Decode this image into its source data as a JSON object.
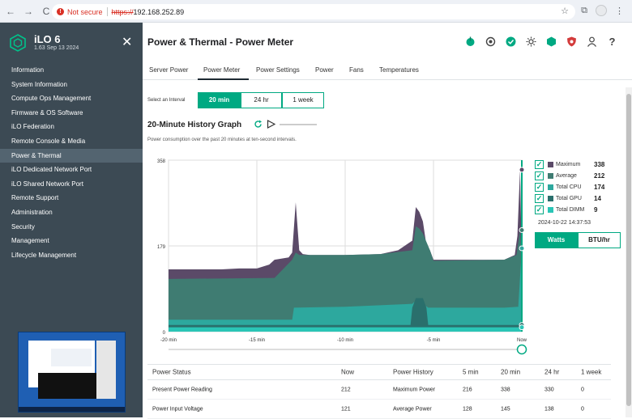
{
  "browser": {
    "nav_back": "←",
    "nav_forward": "→",
    "nav_reload": "C",
    "security_label": "Not secure",
    "url_scheme": "https://",
    "url_host": "192.168.252.89"
  },
  "sidebar": {
    "app_name": "iLO 6",
    "app_version": "1.63 Sep 13 2024",
    "items": [
      {
        "label": "Information"
      },
      {
        "label": "System Information"
      },
      {
        "label": "Compute Ops Management"
      },
      {
        "label": "Firmware & OS Software"
      },
      {
        "label": "iLO Federation"
      },
      {
        "label": "Remote Console & Media"
      },
      {
        "label": "Power & Thermal",
        "active": true
      },
      {
        "label": "iLO Dedicated Network Port"
      },
      {
        "label": "iLO Shared Network Port"
      },
      {
        "label": "Remote Support"
      },
      {
        "label": "Administration"
      },
      {
        "label": "Security"
      },
      {
        "label": "Management"
      },
      {
        "label": "Lifecycle Management"
      }
    ]
  },
  "main": {
    "title": "Power & Thermal - Power Meter",
    "tabs": [
      {
        "label": "Server Power"
      },
      {
        "label": "Power Meter",
        "active": true
      },
      {
        "label": "Power Settings"
      },
      {
        "label": "Power"
      },
      {
        "label": "Fans"
      },
      {
        "label": "Temperatures"
      }
    ],
    "interval_label": "Select an Interval",
    "intervals": [
      {
        "label": "20 min",
        "selected": true
      },
      {
        "label": "24 hr"
      },
      {
        "label": "1 week"
      }
    ],
    "graph_title": "20-Minute History Graph",
    "graph_desc": "Power consumption over the past 20 minutes at ten-second intervals.",
    "legend": [
      {
        "name": "Maximum",
        "value": "338",
        "color": "#5b4a68"
      },
      {
        "name": "Average",
        "value": "212",
        "color": "#3f7c72"
      },
      {
        "name": "Total CPU",
        "value": "174",
        "color": "#2da89e"
      },
      {
        "name": "Total GPU",
        "value": "14",
        "color": "#2a6f6c"
      },
      {
        "name": "Total DIMM",
        "value": "9",
        "color": "#2ac5b6"
      }
    ],
    "timestamp": "2024-10-22 14:37:53",
    "units": [
      {
        "label": "Watts",
        "selected": true
      },
      {
        "label": "BTU/hr"
      }
    ]
  },
  "chart_data": {
    "type": "area",
    "x_ticks": [
      "-20 min",
      "-15 min",
      "-10 min",
      "-5 min",
      "Now"
    ],
    "y_ticks": [
      "358",
      "179",
      "0"
    ],
    "ylim": [
      0,
      358
    ],
    "xlim": [
      -20,
      0
    ],
    "grid": true,
    "series": [
      {
        "name": "Maximum",
        "color": "#5b4a68",
        "x": [
          -20,
          -17,
          -16,
          -15,
          -14.3,
          -14,
          -13.2,
          -13,
          -12.8,
          -12.6,
          -12.4,
          -12,
          -10,
          -8,
          -7,
          -6.2,
          -6,
          -5.8,
          -5.6,
          -5.4,
          -5.2,
          -5,
          -3,
          -1,
          -0.4,
          -0.25,
          -0.1,
          0
        ],
        "values": [
          130,
          130,
          132,
          132,
          140,
          150,
          155,
          165,
          270,
          170,
          162,
          160,
          160,
          162,
          170,
          190,
          260,
          250,
          230,
          180,
          170,
          150,
          150,
          150,
          160,
          200,
          338,
          150
        ]
      },
      {
        "name": "Average",
        "color": "#3f7c72",
        "x": [
          -20,
          -14,
          -13,
          -12.8,
          -12.6,
          -10,
          -8,
          -6.2,
          -6,
          -5.8,
          -5.6,
          -5.2,
          -5,
          -1,
          -0.3,
          -0.1,
          0
        ],
        "values": [
          110,
          112,
          150,
          165,
          160,
          160,
          162,
          170,
          220,
          215,
          205,
          170,
          148,
          150,
          160,
          212,
          150
        ]
      },
      {
        "name": "Total CPU",
        "color": "#2da89e",
        "x": [
          -20,
          -13,
          -12.9,
          -10,
          -6.2,
          -6,
          -5.8,
          -5.6,
          -5.3,
          -1,
          -0.2,
          0
        ],
        "values": [
          25,
          25,
          50,
          52,
          58,
          65,
          60,
          58,
          50,
          50,
          52,
          174
        ]
      },
      {
        "name": "Total GPU",
        "color": "#2a6f6c",
        "x": [
          -20,
          -6.3,
          -6.2,
          -6,
          -5.6,
          -5.4,
          -5.3,
          0
        ],
        "values": [
          14,
          14,
          50,
          70,
          70,
          50,
          14,
          14
        ]
      },
      {
        "name": "Total DIMM",
        "color": "#2ac5b6",
        "x": [
          -20,
          0
        ],
        "values": [
          9,
          9
        ]
      }
    ]
  },
  "table": {
    "headers": [
      "Power Status",
      "Now",
      "Power History",
      "5 min",
      "20 min",
      "24 hr",
      "1 week"
    ],
    "rows": [
      [
        "Present Power Reading",
        "212",
        "Maximum Power",
        "216",
        "338",
        "330",
        "0"
      ],
      [
        "Power Input Voltage",
        "121",
        "Average Power",
        "128",
        "145",
        "138",
        "0"
      ]
    ]
  }
}
